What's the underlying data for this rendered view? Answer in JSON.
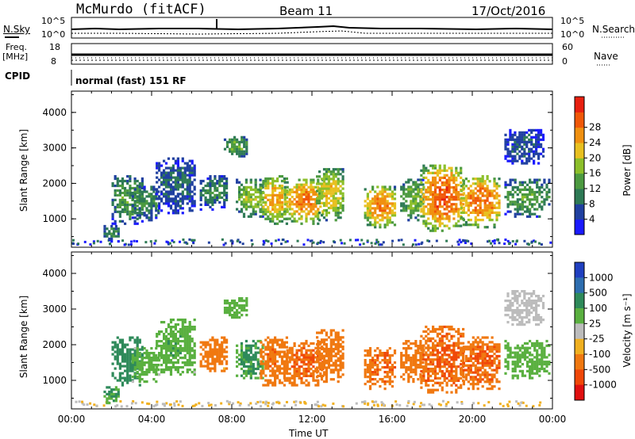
{
  "header": {
    "station": "McMurdo (fitACF)",
    "beam": "Beam 11",
    "date": "17/Oct/2016"
  },
  "noise_panel": {
    "left_label": "N.Sky",
    "left_ticks": [
      "10^5",
      "10^0"
    ],
    "right_label": "N.Search",
    "right_ticks": [
      "10^5",
      "10^0"
    ]
  },
  "freq_panel": {
    "left_label_top": "Freq.",
    "left_label_bottom": "[MHz]",
    "left_ticks": [
      "18",
      "8"
    ],
    "right_label": "Nave",
    "right_ticks": [
      "60",
      "0"
    ]
  },
  "cpid_panel": {
    "label": "CPID",
    "mode_text": "normal (fast) 151 RF"
  },
  "chart_data": [
    {
      "type": "heatmap",
      "name": "power",
      "ylabel": "Slant Range [km]",
      "ylim": [
        200,
        4600
      ],
      "yticks": [
        "1000",
        "2000",
        "3000",
        "4000"
      ],
      "colorbar_label": "Power [dB]",
      "colorbar_ticks": [
        "4",
        "8",
        "12",
        "16",
        "20",
        "24",
        "28"
      ],
      "colorbar_colors": [
        "#1a1aff",
        "#2040a0",
        "#2e7a55",
        "#4c9a40",
        "#8cbf2a",
        "#e8c020",
        "#f09010",
        "#f05808",
        "#e82010"
      ],
      "cells": [
        {
          "t0": 1.6,
          "t1": 2.4,
          "r0": 400,
          "r1": 900,
          "v": 10
        },
        {
          "t0": 2.0,
          "t1": 3.6,
          "r0": 900,
          "r1": 2300,
          "v": 12
        },
        {
          "t0": 3.0,
          "t1": 4.4,
          "r0": 1000,
          "r1": 2000,
          "v": 10
        },
        {
          "t0": 4.2,
          "t1": 6.2,
          "r0": 1200,
          "r1": 2800,
          "v": 8
        },
        {
          "t0": 6.4,
          "t1": 7.8,
          "r0": 1300,
          "r1": 2300,
          "v": 10
        },
        {
          "t0": 7.6,
          "t1": 8.8,
          "r0": 2800,
          "r1": 3400,
          "v": 13
        },
        {
          "t0": 8.2,
          "t1": 9.6,
          "r0": 1100,
          "r1": 2200,
          "v": 15
        },
        {
          "t0": 9.4,
          "t1": 10.8,
          "r0": 900,
          "r1": 2300,
          "v": 20
        },
        {
          "t0": 10.6,
          "t1": 12.6,
          "r0": 900,
          "r1": 2200,
          "v": 22
        },
        {
          "t0": 12.2,
          "t1": 13.6,
          "r0": 1000,
          "r1": 2500,
          "v": 18
        },
        {
          "t0": 14.6,
          "t1": 16.2,
          "r0": 800,
          "r1": 2000,
          "v": 22
        },
        {
          "t0": 16.4,
          "t1": 17.6,
          "r0": 1000,
          "r1": 2200,
          "v": 14
        },
        {
          "t0": 17.4,
          "t1": 19.6,
          "r0": 700,
          "r1": 2600,
          "v": 24
        },
        {
          "t0": 19.4,
          "t1": 21.4,
          "r0": 800,
          "r1": 2300,
          "v": 23
        },
        {
          "t0": 21.6,
          "t1": 23.9,
          "r0": 1100,
          "r1": 2200,
          "v": 12
        },
        {
          "t0": 21.6,
          "t1": 23.6,
          "r0": 2600,
          "r1": 3600,
          "v": 7
        }
      ]
    },
    {
      "type": "heatmap",
      "name": "velocity",
      "ylabel": "Slant Range [km]",
      "ylim": [
        200,
        4600
      ],
      "yticks": [
        "1000",
        "2000",
        "3000",
        "4000"
      ],
      "colorbar_label": "Velocity [m s⁻¹]",
      "colorbar_ticks": [
        "1000",
        "500",
        "100",
        "25",
        "-25",
        "-100",
        "-500",
        "-1000"
      ],
      "colorbar_colors": [
        "#2040c0",
        "#2e6eb0",
        "#2e8a5a",
        "#5ab040",
        "#bcbcbc",
        "#f0b020",
        "#f07810",
        "#f04808",
        "#e01010"
      ],
      "cells": [
        {
          "t0": 1.6,
          "t1": 2.4,
          "r0": 400,
          "r1": 900,
          "v": 100
        },
        {
          "t0": 2.0,
          "t1": 3.6,
          "r0": 900,
          "r1": 2300,
          "v": 300
        },
        {
          "t0": 3.0,
          "t1": 4.4,
          "r0": 1000,
          "r1": 2000,
          "v": 60
        },
        {
          "t0": 4.2,
          "t1": 6.2,
          "r0": 1200,
          "r1": 2800,
          "v": 80
        },
        {
          "t0": 6.4,
          "t1": 7.8,
          "r0": 1300,
          "r1": 2300,
          "v": -200
        },
        {
          "t0": 7.6,
          "t1": 8.8,
          "r0": 2800,
          "r1": 3400,
          "v": 60
        },
        {
          "t0": 8.2,
          "t1": 9.6,
          "r0": 1100,
          "r1": 2200,
          "v": 120
        },
        {
          "t0": 9.4,
          "t1": 10.8,
          "r0": 900,
          "r1": 2300,
          "v": -400
        },
        {
          "t0": 10.6,
          "t1": 12.6,
          "r0": 900,
          "r1": 2200,
          "v": -450
        },
        {
          "t0": 12.2,
          "t1": 13.6,
          "r0": 1000,
          "r1": 2500,
          "v": -300
        },
        {
          "t0": 14.6,
          "t1": 16.2,
          "r0": 800,
          "r1": 2000,
          "v": -450
        },
        {
          "t0": 16.4,
          "t1": 17.6,
          "r0": 1000,
          "r1": 2200,
          "v": -350
        },
        {
          "t0": 17.4,
          "t1": 19.6,
          "r0": 700,
          "r1": 2600,
          "v": -480
        },
        {
          "t0": 19.4,
          "t1": 21.4,
          "r0": 800,
          "r1": 2300,
          "v": -450
        },
        {
          "t0": 21.6,
          "t1": 23.9,
          "r0": 1100,
          "r1": 2200,
          "v": 60
        },
        {
          "t0": 21.6,
          "t1": 23.6,
          "r0": 2600,
          "r1": 3600,
          "v": 10
        }
      ]
    }
  ],
  "time_axis": {
    "label": "Time UT",
    "xlim": [
      0,
      24
    ],
    "ticks": [
      {
        "t": 0,
        "label": "00:00"
      },
      {
        "t": 4,
        "label": "04:00"
      },
      {
        "t": 8,
        "label": "08:00"
      },
      {
        "t": 12,
        "label": "12:00"
      },
      {
        "t": 16,
        "label": "16:00"
      },
      {
        "t": 20,
        "label": "20:00"
      },
      {
        "t": 24,
        "label": "00:00"
      }
    ]
  }
}
